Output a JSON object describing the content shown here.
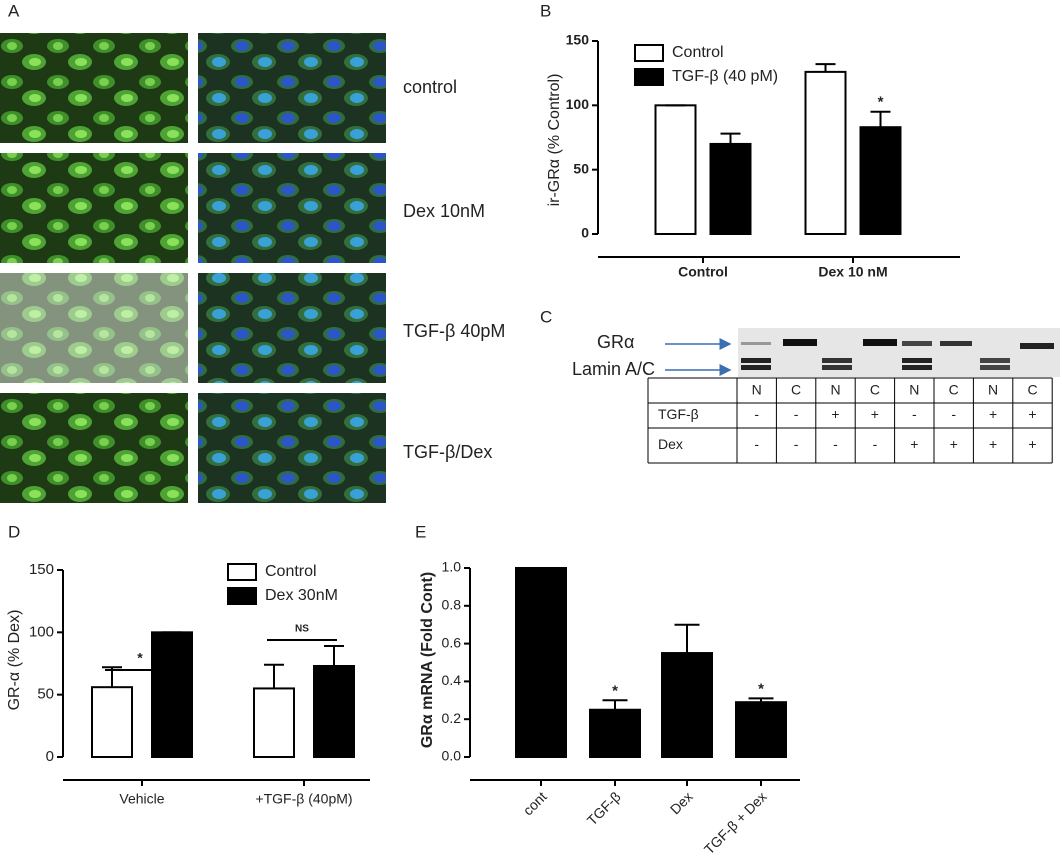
{
  "panels": [
    "A",
    "B",
    "C",
    "D",
    "E"
  ],
  "micrograph_labels": [
    "control",
    "Dex 10nM",
    "TGF-β 40pM",
    "TGF-β/Dex"
  ],
  "blot": {
    "bands": [
      "GRα",
      "Lamin A/C"
    ],
    "columns": [
      "N",
      "C",
      "N",
      "C",
      "N",
      "C",
      "N",
      "C"
    ],
    "rows": [
      {
        "label": "TGF-β",
        "cells": [
          "-",
          "-",
          "+",
          "+",
          "-",
          "-",
          "+",
          "+"
        ]
      },
      {
        "label": "Dex",
        "cells": [
          "-",
          "-",
          "-",
          "-",
          "+",
          "+",
          "+",
          "+"
        ]
      }
    ]
  },
  "chart_data": [
    {
      "type": "bar",
      "y_label": "ir-GRα (% Control)",
      "categories": [
        "Control",
        "Dex 10 nM"
      ],
      "series": [
        {
          "name": "Control",
          "color": "#ffffff",
          "values": [
            100,
            126
          ],
          "errors": [
            0,
            6
          ],
          "significance": [
            null,
            null
          ]
        },
        {
          "name": "TGF-β (40 pM)",
          "color": "#000000",
          "values": [
            70,
            83
          ],
          "errors": [
            8,
            12
          ],
          "significance": [
            null,
            "*"
          ]
        }
      ],
      "ylim": [
        0,
        150
      ],
      "yticks": [
        0,
        50,
        100,
        150
      ]
    },
    {
      "type": "bar",
      "y_label": "GR-α (% Dex)",
      "categories": [
        "Vehicle",
        "+TGF-β (40pM)"
      ],
      "series": [
        {
          "name": "Control",
          "color": "#ffffff",
          "values": [
            56,
            55
          ],
          "errors": [
            16,
            19
          ]
        },
        {
          "name": "Dex 30nM",
          "color": "#000000",
          "values": [
            100,
            73
          ],
          "errors": [
            0,
            16
          ]
        }
      ],
      "brackets": [
        "*",
        "NS"
      ],
      "ylim": [
        0,
        150
      ],
      "yticks": [
        0,
        50,
        100,
        150
      ]
    },
    {
      "type": "bar",
      "y_label": "GRα  mRNA (Fold Cont)",
      "categories": [
        "cont",
        "TGF-β",
        "Dex",
        "TGF-β + Dex"
      ],
      "color": "#000000",
      "values": [
        1.0,
        0.25,
        0.55,
        0.29
      ],
      "errors": [
        0,
        0.05,
        0.15,
        0.02
      ],
      "significance": [
        null,
        "*",
        null,
        "*"
      ],
      "ylim": [
        0,
        1.0
      ],
      "yticks": [
        {
          "value": 0,
          "label": "0.0"
        },
        0.2,
        0.4,
        0.6,
        0.8,
        {
          "value": 1,
          "label": "1.0"
        }
      ]
    }
  ]
}
